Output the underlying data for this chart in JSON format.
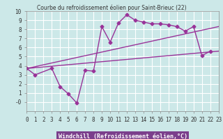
{
  "title": "Courbe du refroidissement éolien pour Saint-Brieuc (22)",
  "xlabel": "Windchill (Refroidissement éolien,°C)",
  "bg_color": "#cce8e8",
  "grid_color": "#ffffff",
  "line_color": "#993399",
  "line1_x": [
    0,
    1,
    3,
    4,
    5,
    6,
    7,
    8,
    9,
    10,
    11,
    12,
    13,
    14,
    15,
    16,
    17,
    18,
    19,
    20,
    21,
    22,
    23
  ],
  "line1_y": [
    3.7,
    3.0,
    3.7,
    1.7,
    0.9,
    -0.1,
    3.5,
    3.4,
    8.3,
    6.6,
    8.7,
    9.6,
    9.0,
    8.8,
    8.6,
    8.6,
    8.5,
    8.3,
    7.8,
    8.3,
    5.1,
    5.6,
    null
  ],
  "line2_x": [
    0,
    23
  ],
  "line2_y": [
    3.7,
    8.3
  ],
  "line3_x": [
    0,
    23
  ],
  "line3_y": [
    3.7,
    5.6
  ],
  "xmin": 0,
  "xmax": 23,
  "ymin": -1,
  "ymax": 10,
  "xticks": [
    0,
    1,
    2,
    3,
    4,
    5,
    6,
    7,
    8,
    9,
    10,
    11,
    12,
    13,
    14,
    15,
    16,
    17,
    18,
    19,
    20,
    21,
    22,
    23
  ],
  "yticks": [
    0,
    1,
    2,
    3,
    4,
    5,
    6,
    7,
    8,
    9,
    10
  ]
}
